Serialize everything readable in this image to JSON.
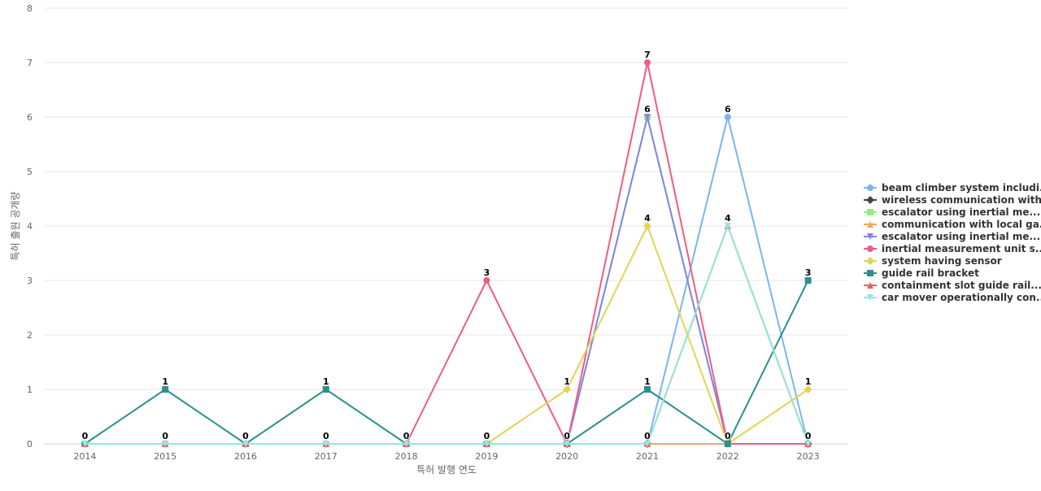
{
  "chart_data": {
    "type": "line",
    "xlabel": "특허 발행 연도",
    "ylabel": "특허 출원 공개량",
    "ylim": [
      0,
      8
    ],
    "yticks": [
      0,
      1,
      2,
      3,
      4,
      5,
      6,
      7,
      8
    ],
    "categories": [
      "2014",
      "2015",
      "2016",
      "2017",
      "2018",
      "2019",
      "2020",
      "2021",
      "2022",
      "2023"
    ],
    "grid": true,
    "legend_position": "right",
    "series": [
      {
        "name": "beam climber system includi...",
        "color": "#7cb5ec",
        "marker": "circle",
        "values": [
          0,
          0,
          0,
          0,
          0,
          0,
          0,
          0,
          6,
          0
        ]
      },
      {
        "name": "wireless communication with...",
        "color": "#434348",
        "marker": "diamond",
        "values": [
          0,
          0,
          0,
          0,
          0,
          0,
          0,
          0,
          0,
          0
        ]
      },
      {
        "name": "escalator using inertial me...",
        "color": "#90ed7d",
        "marker": "square",
        "values": [
          0,
          0,
          0,
          0,
          0,
          0,
          0,
          6,
          0,
          0
        ]
      },
      {
        "name": "communication with local ga...",
        "color": "#f7a35c",
        "marker": "triangle",
        "values": [
          0,
          0,
          0,
          0,
          0,
          0,
          0,
          0,
          0,
          0
        ]
      },
      {
        "name": "escalator using inertial me...",
        "color": "#8085e9",
        "marker": "triangle-down",
        "values": [
          0,
          0,
          0,
          0,
          0,
          0,
          0,
          6,
          0,
          0
        ]
      },
      {
        "name": "inertial measurement unit s...",
        "color": "#f15c80",
        "marker": "circle",
        "values": [
          0,
          0,
          0,
          0,
          0,
          3,
          0,
          7,
          0,
          0
        ]
      },
      {
        "name": "system having sensor",
        "color": "#e4d354",
        "marker": "diamond",
        "values": [
          0,
          0,
          0,
          0,
          0,
          0,
          1,
          4,
          0,
          1
        ]
      },
      {
        "name": "guide rail bracket",
        "color": "#2b908f",
        "marker": "square",
        "values": [
          0,
          1,
          0,
          1,
          0,
          0,
          0,
          1,
          0,
          3
        ]
      },
      {
        "name": "containment slot guide rail...",
        "color": "#f45b5b",
        "marker": "triangle",
        "values": [
          0,
          0,
          0,
          0,
          0,
          0,
          0,
          0,
          4,
          0
        ]
      },
      {
        "name": "car mover operationally con...",
        "color": "#91e8e1",
        "marker": "triangle-down",
        "values": [
          0,
          0,
          0,
          0,
          0,
          0,
          0,
          0,
          4,
          0
        ]
      }
    ],
    "data_labels": [
      {
        "x": "2014",
        "value": "0"
      },
      {
        "x": "2015",
        "value": "0"
      },
      {
        "x": "2015",
        "value": "1"
      },
      {
        "x": "2016",
        "value": "0"
      },
      {
        "x": "2017",
        "value": "0"
      },
      {
        "x": "2017",
        "value": "1"
      },
      {
        "x": "2018",
        "value": "0"
      },
      {
        "x": "2019",
        "value": "0"
      },
      {
        "x": "2019",
        "value": "3"
      },
      {
        "x": "2020",
        "value": "0"
      },
      {
        "x": "2020",
        "value": "1"
      },
      {
        "x": "2021",
        "value": "0"
      },
      {
        "x": "2021",
        "value": "1"
      },
      {
        "x": "2021",
        "value": "4"
      },
      {
        "x": "2021",
        "value": "6"
      },
      {
        "x": "2021",
        "value": "7"
      },
      {
        "x": "2022",
        "value": "0"
      },
      {
        "x": "2022",
        "value": "4"
      },
      {
        "x": "2022",
        "value": "6"
      },
      {
        "x": "2023",
        "value": "0"
      },
      {
        "x": "2023",
        "value": "1"
      },
      {
        "x": "2023",
        "value": "3"
      }
    ]
  }
}
